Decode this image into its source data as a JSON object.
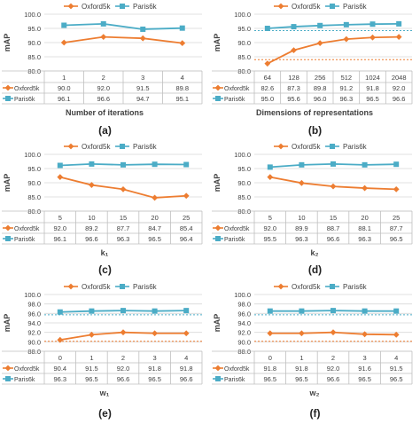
{
  "colors": {
    "oxford": "#ED7D31",
    "paris": "#4BACC6",
    "grid": "#d9d9d9",
    "text": "#404040"
  },
  "chart_data": [
    {
      "type": "line",
      "panel_label": "(a)",
      "ylabel": "mAP",
      "xlabel": "Number of iterations",
      "ylim": [
        80,
        100
      ],
      "yticks": [
        80,
        85,
        90,
        95,
        100
      ],
      "categories": [
        "1",
        "2",
        "3",
        "4"
      ],
      "series": [
        {
          "name": "Oxford5k",
          "values": [
            90.0,
            92.0,
            91.5,
            89.8
          ],
          "labels": [
            "90.0",
            "92.0",
            "91.5",
            "89.8"
          ]
        },
        {
          "name": "Paris6k",
          "values": [
            96.1,
            96.6,
            94.7,
            95.1
          ],
          "labels": [
            "96.1",
            "96.6",
            "94.7",
            "95.1"
          ]
        }
      ],
      "legend": "top",
      "reference_lines": []
    },
    {
      "type": "line",
      "panel_label": "(b)",
      "ylabel": "mAP",
      "xlabel": "Dimensions of representations",
      "ylim": [
        80,
        100
      ],
      "yticks": [
        80,
        85,
        90,
        95,
        100
      ],
      "categories": [
        "64",
        "128",
        "256",
        "512",
        "1024",
        "2048"
      ],
      "series": [
        {
          "name": "Oxford5k",
          "values": [
            82.6,
            87.3,
            89.8,
            91.2,
            91.8,
            92.0
          ],
          "labels": [
            "82.6",
            "87.3",
            "89.8",
            "91.2",
            "91.8",
            "92.0"
          ]
        },
        {
          "name": "Paris6k",
          "values": [
            95.0,
            95.6,
            96.0,
            96.3,
            96.5,
            96.6
          ],
          "labels": [
            "95.0",
            "95.6",
            "96.0",
            "96.3",
            "96.5",
            "96.6"
          ]
        }
      ],
      "legend": "top",
      "reference_lines": [
        {
          "series": "Paris6k",
          "value": 94.2
        },
        {
          "series": "Oxford5k",
          "value": 84.0
        }
      ]
    },
    {
      "type": "line",
      "panel_label": "(c)",
      "ylabel": "mAP",
      "xlabel": "k₁",
      "ylim": [
        80,
        100
      ],
      "yticks": [
        80,
        85,
        90,
        95,
        100
      ],
      "categories": [
        "5",
        "10",
        "15",
        "20",
        "25"
      ],
      "series": [
        {
          "name": "Oxford5k",
          "values": [
            92.0,
            89.2,
            87.7,
            84.7,
            85.4
          ],
          "labels": [
            "92.0",
            "89.2",
            "87.7",
            "84.7",
            "85.4"
          ]
        },
        {
          "name": "Paris6k",
          "values": [
            96.1,
            96.6,
            96.3,
            96.5,
            96.4
          ],
          "labels": [
            "96.1",
            "96.6",
            "96.3",
            "96.5",
            "96.4"
          ]
        }
      ],
      "legend": "top",
      "reference_lines": []
    },
    {
      "type": "line",
      "panel_label": "(d)",
      "ylabel": "mAP",
      "xlabel": "k₂",
      "ylim": [
        80,
        100
      ],
      "yticks": [
        80,
        85,
        90,
        95,
        100
      ],
      "categories": [
        "5",
        "10",
        "15",
        "20",
        "25"
      ],
      "series": [
        {
          "name": "Oxford5k",
          "values": [
            92.0,
            89.9,
            88.7,
            88.1,
            87.7
          ],
          "labels": [
            "92.0",
            "89.9",
            "88.7",
            "88.1",
            "87.7"
          ]
        },
        {
          "name": "Paris6k",
          "values": [
            95.5,
            96.3,
            96.6,
            96.3,
            96.5
          ],
          "labels": [
            "95.5",
            "96.3",
            "96.6",
            "96.3",
            "96.5"
          ]
        }
      ],
      "legend": "top",
      "reference_lines": []
    },
    {
      "type": "line",
      "panel_label": "(e)",
      "ylabel": "mAP",
      "xlabel": "w₁",
      "ylim": [
        88,
        100
      ],
      "yticks": [
        88,
        90,
        92,
        94,
        96,
        98,
        100
      ],
      "categories": [
        "0",
        "1",
        "2",
        "3",
        "4"
      ],
      "series": [
        {
          "name": "Oxford5k",
          "values": [
            90.4,
            91.5,
            92.0,
            91.8,
            91.8
          ],
          "labels": [
            "90.4",
            "91.5",
            "92.0",
            "91.8",
            "91.8"
          ]
        },
        {
          "name": "Paris6k",
          "values": [
            96.3,
            96.5,
            96.6,
            96.5,
            96.6
          ],
          "labels": [
            "96.3",
            "96.5",
            "96.6",
            "96.5",
            "96.6"
          ]
        }
      ],
      "legend": "top",
      "reference_lines": [
        {
          "series": "Paris6k",
          "value": 95.7
        },
        {
          "series": "Oxford5k",
          "value": 90.1
        }
      ]
    },
    {
      "type": "line",
      "panel_label": "(f)",
      "ylabel": "mAP",
      "xlabel": "w₂",
      "ylim": [
        88,
        100
      ],
      "yticks": [
        88,
        90,
        92,
        94,
        96,
        98,
        100
      ],
      "categories": [
        "0",
        "1",
        "2",
        "3",
        "4"
      ],
      "series": [
        {
          "name": "Oxford5k",
          "values": [
            91.8,
            91.8,
            92.0,
            91.6,
            91.5
          ],
          "labels": [
            "91.8",
            "91.8",
            "92.0",
            "91.6",
            "91.5"
          ]
        },
        {
          "name": "Paris6k",
          "values": [
            96.5,
            96.5,
            96.6,
            96.5,
            96.5
          ],
          "labels": [
            "96.5",
            "96.5",
            "96.6",
            "96.5",
            "96.5"
          ]
        }
      ],
      "legend": "top",
      "reference_lines": [
        {
          "series": "Paris6k",
          "value": 95.7
        },
        {
          "series": "Oxford5k",
          "value": 90.1
        }
      ]
    }
  ]
}
